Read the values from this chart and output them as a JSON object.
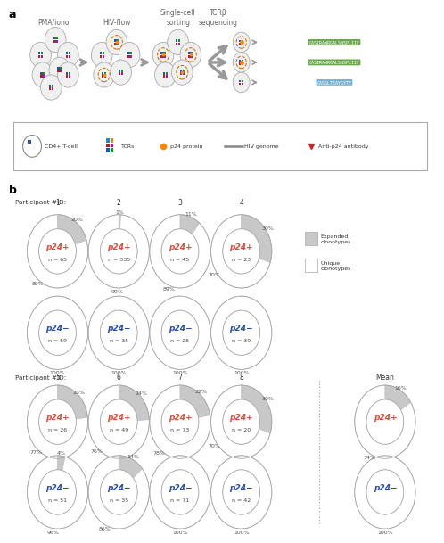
{
  "sequences": [
    "CASIRAWRGALSNSPLIIF",
    "CASIRAWRGALSNSPLIIF",
    "CASSLTEAYGYTF"
  ],
  "seq_colors": [
    "#5a9e3a",
    "#5a9e3a",
    "#6aabcf"
  ],
  "p24plus_color": "#d94f3d",
  "p24minus_color": "#2b4fa3",
  "expanded_color": "#c8c8c8",
  "row1_ids": [
    "1",
    "2",
    "3",
    "4"
  ],
  "row2_ids": [
    "5",
    "6",
    "7",
    "8"
  ],
  "row1_plus_exp": [
    20,
    1,
    11,
    30
  ],
  "row1_plus_uniq": [
    80,
    99,
    89,
    70
  ],
  "row1_plus_n": [
    65,
    335,
    45,
    23
  ],
  "row1_minus_n": [
    59,
    35,
    25,
    39
  ],
  "row2_plus_exp": [
    23,
    24,
    22,
    30
  ],
  "row2_plus_uniq": [
    77,
    76,
    78,
    70
  ],
  "row2_plus_n": [
    26,
    49,
    73,
    20
  ],
  "row2_minus_exp": [
    4,
    14,
    0,
    0
  ],
  "row2_minus_uniq": [
    96,
    86,
    100,
    100
  ],
  "row2_minus_n": [
    51,
    35,
    71,
    42
  ],
  "mean_plus_exp": 16,
  "mean_plus_uniq": 74,
  "mean_minus_exp": 0,
  "mean_minus_uniq": 100,
  "tcr_colors": [
    "#2255aa",
    "#228822",
    "#aa2222",
    "#8822aa",
    "#2288cc",
    "#cc8822"
  ],
  "cell_color": "#f0f0f0",
  "cell_edge": "#aaaaaa",
  "hiv_circle_color": "#cc6600",
  "p24_dot_color": "#ff8800",
  "arrow_color": "#999999",
  "background": "#ffffff"
}
